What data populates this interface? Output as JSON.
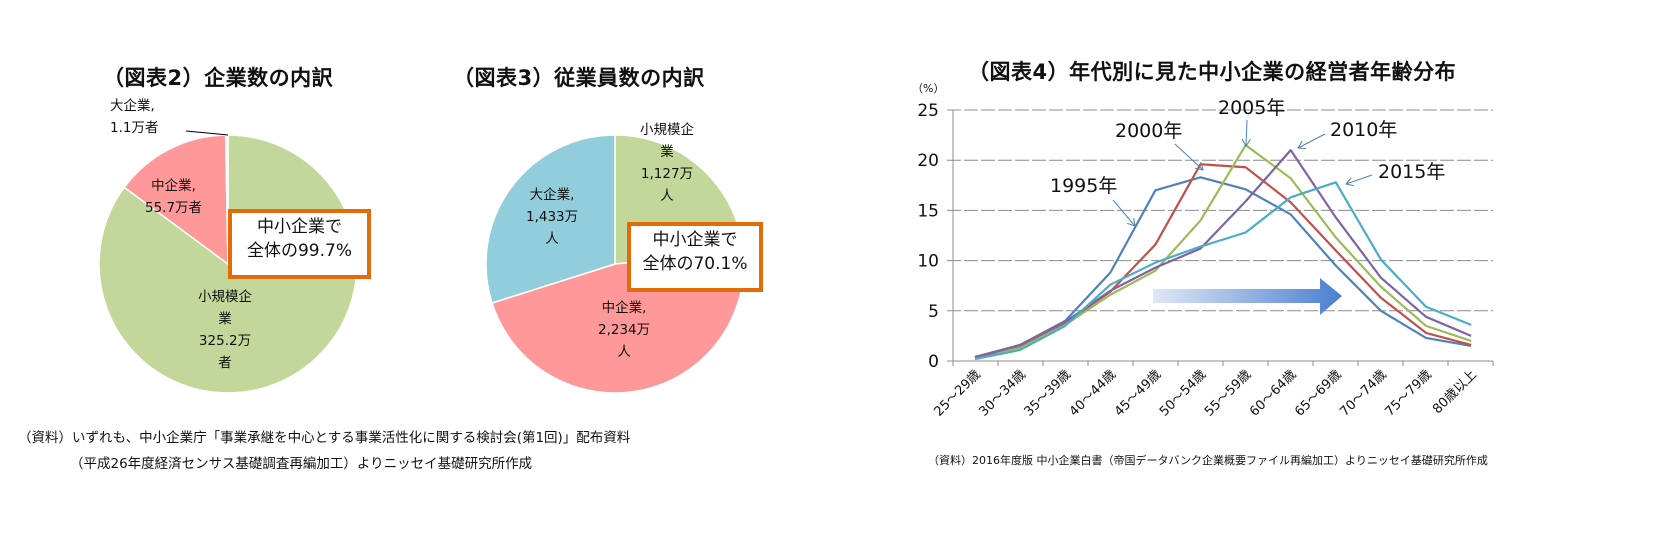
{
  "chart2": {
    "title": "（図表2）企業数の内訳",
    "callout_line1": "中小企業で",
    "callout_line2": "全体の99.7%",
    "slices": [
      {
        "label_line1": "大企業,",
        "label_line2": "1.1万者",
        "value": 1.1,
        "color": "#f2f2f2"
      },
      {
        "label_line1": "中企業,",
        "label_line2": "55.7万者",
        "value": 55.7,
        "color": "#ff9999"
      },
      {
        "label_line1": "小規模企",
        "label_line2": "業",
        "label_line3": "325.2万",
        "label_line4": "者",
        "value": 325.2,
        "color": "#c4d79b"
      }
    ]
  },
  "chart3": {
    "title": "（図表3）従業員数の内訳",
    "callout_line1": "中小企業で",
    "callout_line2": "全体の70.1%",
    "slices": [
      {
        "label_line1": "小規模企",
        "label_line2": "業",
        "label_line3": "1,127万",
        "label_line4": "人",
        "value": 1127,
        "color": "#c4d79b"
      },
      {
        "label_line1": "中企業,",
        "label_line2": "2,234万",
        "label_line3": "人",
        "value": 2234,
        "color": "#ff9999"
      },
      {
        "label_line1": "大企業,",
        "label_line2": "1,433万",
        "label_line3": "人",
        "value": 1433,
        "color": "#92cddc"
      }
    ]
  },
  "chart4": {
    "title": "（図表4）年代別に見た中小企業の経営者年齢分布",
    "unit": "（%）",
    "source": "（資料）2016年度版 中小企業白書（帝国データバンク企業概要ファイル再編加工）よりニッセイ基礎研究所作成"
  },
  "source_left_line1": "（資料）いずれも、中小企業庁「事業承継を中心とする事業活性化に関する検討会(第1回)」配布資料",
  "source_left_line2": "（平成26年度経済センサス基礎調査再編加工）よりニッセイ基礎研究所作成",
  "chart_data": [
    {
      "type": "pie",
      "title": "（図表2）企業数の内訳",
      "categories": [
        "大企業",
        "中企業",
        "小規模企業"
      ],
      "values": [
        1.1,
        55.7,
        325.2
      ],
      "unit": "万者",
      "annotations": [
        "中小企業で全体の99.7%"
      ]
    },
    {
      "type": "pie",
      "title": "（図表3）従業員数の内訳",
      "categories": [
        "小規模企業",
        "中企業",
        "大企業"
      ],
      "values": [
        1127,
        2234,
        1433
      ],
      "unit": "万人",
      "annotations": [
        "中小企業で全体の70.1%"
      ]
    },
    {
      "type": "line",
      "title": "（図表4）年代別に見た中小企業の経営者年齢分布",
      "xlabel": "",
      "ylabel": "（%）",
      "ylim": [
        0,
        25
      ],
      "yticks": [
        0,
        5,
        10,
        15,
        20,
        25
      ],
      "grid": true,
      "legend": "inline labels with arrows",
      "categories": [
        "25～29歳",
        "30～34歳",
        "35～39歳",
        "40～44歳",
        "45～49歳",
        "50～54歳",
        "55～59歳",
        "60～64歳",
        "65～69歳",
        "70～74歳",
        "75～79歳",
        "80歳以上"
      ],
      "series": [
        {
          "name": "1995年",
          "color": "#4f81bd",
          "values": [
            0.4,
            1.6,
            4.0,
            8.8,
            17.0,
            18.3,
            17.1,
            14.6,
            9.5,
            5.0,
            2.3,
            1.5
          ]
        },
        {
          "name": "2000年",
          "color": "#c0504d",
          "values": [
            0.4,
            1.5,
            3.8,
            6.9,
            11.6,
            19.6,
            19.3,
            15.8,
            11.0,
            6.3,
            2.8,
            1.6
          ]
        },
        {
          "name": "2005年",
          "color": "#9bbb59",
          "values": [
            0.3,
            1.3,
            3.6,
            6.6,
            9.0,
            14.0,
            21.5,
            18.2,
            12.3,
            7.4,
            3.5,
            2.0
          ]
        },
        {
          "name": "2010年",
          "color": "#8064a2",
          "values": [
            0.3,
            1.6,
            3.9,
            7.0,
            9.3,
            11.2,
            15.9,
            21.0,
            14.3,
            8.3,
            4.4,
            2.5
          ]
        },
        {
          "name": "2015年",
          "color": "#4bacc6",
          "values": [
            0.2,
            1.1,
            3.5,
            7.6,
            9.8,
            11.4,
            12.8,
            16.3,
            17.8,
            10.1,
            5.4,
            3.6
          ]
        }
      ],
      "annotations": [
        "shift arrow (gradient, pointing right) indicating aging peak"
      ]
    }
  ]
}
